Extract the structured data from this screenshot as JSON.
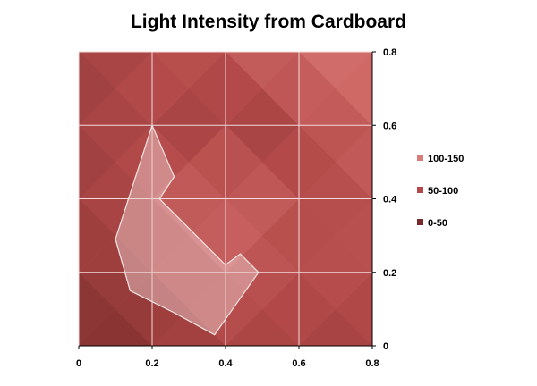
{
  "chart_data": {
    "type": "surface-contour",
    "title": "Light Intensity from Cardboard",
    "xlabel": "",
    "ylabel": "",
    "xlim": [
      0,
      0.8
    ],
    "ylim": [
      0,
      0.8
    ],
    "x_ticks": [
      "0",
      "0.2",
      "0.4",
      "0.6",
      "0.8"
    ],
    "y_ticks": [
      "0",
      "0.2",
      "0.4",
      "0.6",
      "0.8"
    ],
    "grid": true,
    "legend_position": "right",
    "bands": [
      {
        "label": "100-150",
        "color": "#d97b77"
      },
      {
        "label": "50-100",
        "color": "#b34a49"
      },
      {
        "label": "0-50",
        "color": "#7a2929"
      }
    ],
    "grid_x": [
      0,
      0.2,
      0.4,
      0.6,
      0.8
    ],
    "grid_y": [
      0,
      0.2,
      0.4,
      0.6,
      0.8
    ],
    "z": [
      [
        30,
        45,
        70,
        60,
        65
      ],
      [
        50,
        60,
        90,
        85,
        80
      ],
      [
        60,
        75,
        130,
        70,
        90
      ],
      [
        55,
        80,
        45,
        75,
        110
      ],
      [
        60,
        75,
        95,
        120,
        135
      ]
    ],
    "overlay": {
      "name": "cardboard-outline",
      "points": [
        [
          0.2,
          0.6
        ],
        [
          0.26,
          0.46
        ],
        [
          0.22,
          0.4
        ],
        [
          0.4,
          0.22
        ],
        [
          0.44,
          0.25
        ],
        [
          0.49,
          0.2
        ],
        [
          0.37,
          0.03
        ],
        [
          0.26,
          0.09
        ],
        [
          0.14,
          0.15
        ],
        [
          0.1,
          0.29
        ],
        [
          0.2,
          0.6
        ]
      ]
    }
  }
}
